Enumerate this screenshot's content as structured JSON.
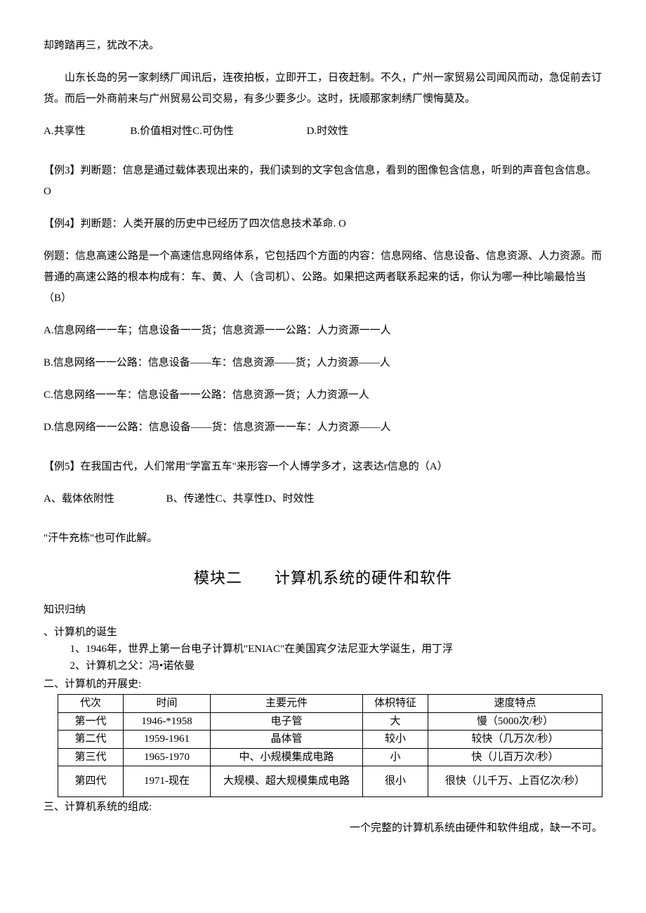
{
  "p1": "却跨踏再三，犹改不决。",
  "p2": "山东长岛的另一家刺绣厂闻讯后，连夜拍板，立即开工，日夜赶制。不久，广州一家贸易公司闻风而动，急促前去订货。而后一外商前来与广州贸易公司交易，有多少要多少。这时，抚顺那家刺绣厂懊悔莫及。",
  "opts1": {
    "a": "A.共享性",
    "b": "B.价值相对性",
    "c": "C.可伪性",
    "d": "D.时效性"
  },
  "ex3": "【例3】判断题：信息是通过载体表现出来的，我们读到的文字包含信息，看到的图像包含信息，听到的声音包含信息。O",
  "ex4": "【例4】判断题：人类开展的历史中已经历了四次信息技术革命. O",
  "exq": "例题：信息高速公路是一个高速信息网络体系，它包括四个方面的内容：信息网络、信息设备、信息资源、人力资源。而普通的高速公路的根本构成有：车、黄、人（含司机）、公路。如果把这两者联系起来的话，你认为哪一种比喻最恰当（B）",
  "exq_opts": {
    "a": "A.信息网络一一车；信息设备一一货；信息资源一一公路：人力资源一一人",
    "b": "B.信息网络一一公路：信息设备——车：信息资源——货；人力资源——人",
    "c": "C.信息网络一一车：信息设备一一公路：信息资源一货；人力资源一人",
    "d": "D.信息网络一一公路：信息设备——货：信息资源一一车：人力资源——人"
  },
  "ex5": "【例5】在我国古代，人们常用\"学富五车\"来形容一个人博学多才，这表达r信息的（A）",
  "ex5_opts": {
    "a": "A、载体依附性",
    "b": "B、传递性",
    "c": "C、共享性",
    "d": "D、时效性"
  },
  "p_tail": "\"汗牛充栋\"也可作此解。",
  "sec2_title": "模块二　　计算机系统的硬件和软件",
  "sec2_sub1": "知识归纳",
  "sec2_sub2": "、计算机的诞生",
  "sec2_li1": "1、1946年，世界上第一台电子计算机\"ENIAC\"在美国宾夕法尼亚大学诞生，用丁浮",
  "sec2_li2": "2、计算机之父：冯•诺依曼",
  "sec2_sub3": "二、计算机的开展史:",
  "table": {
    "columns": [
      "代次",
      "时间",
      "主要元件",
      "体枳特征",
      "速度特点"
    ],
    "col_widths": [
      "12%",
      "16%",
      "28%",
      "12%",
      "32%"
    ],
    "rows": [
      [
        "第一代",
        "1946-*1958",
        "电子管",
        "大",
        "慢（5000次/秒）"
      ],
      [
        "第二代",
        "1959-1961",
        "晶体管",
        "较小",
        "较快（几万次/秒）"
      ],
      [
        "第三代",
        "1965-1970",
        "中、小规模集成电路",
        "小",
        "快（儿百万次/秒）"
      ],
      [
        "第四代",
        "1971-现在",
        "大规模、超大规模集成电路",
        "很小",
        "很快（儿千万、上百亿次/秒）"
      ]
    ]
  },
  "sec2_sub4": "三、计算机系统的组成:",
  "sec2_note": "一个完整的计算机系统由硬件和软件组成，缺一不可。"
}
